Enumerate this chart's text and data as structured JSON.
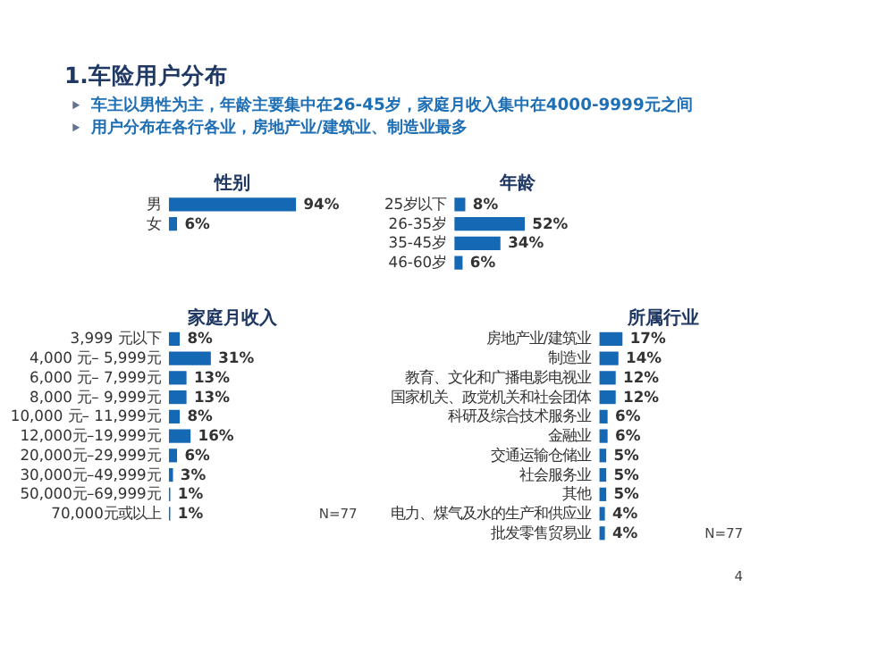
{
  "chart_data": [
    {
      "type": "other",
      "title": "1.车险用户分布",
      "annotations": [
        "车主以男性为主，年龄主要集中在26-45岁，家庭月收入集中在4000-9999元之间",
        "用户分布在各行各业，房地产业/建筑业、制造业最多"
      ]
    },
    {
      "type": "bar",
      "orientation": "horizontal",
      "title": "性别",
      "categories": [
        "男",
        "女"
      ],
      "values": [
        94,
        6
      ],
      "value_labels": [
        "94%",
        "6%"
      ],
      "color": "#1468b4"
    },
    {
      "type": "bar",
      "orientation": "horizontal",
      "title": "年龄",
      "categories": [
        "25岁以下",
        "26-35岁",
        "35-45岁",
        "46-60岁"
      ],
      "values": [
        8,
        52,
        34,
        6
      ],
      "value_labels": [
        "8%",
        "52%",
        "34%",
        "6%"
      ],
      "color": "#1468b4"
    },
    {
      "type": "bar",
      "orientation": "horizontal",
      "title": "家庭月收入",
      "categories": [
        "3,999 元以下",
        "4,000 元– 5,999元",
        "6,000 元– 7,999元",
        "8,000 元– 9,999元",
        "10,000 元– 11,999元",
        "12,000元–19,999元",
        "20,000元–29,999元",
        "30,000元–49,999元",
        "50,000元–69,999元",
        "70,000元或以上"
      ],
      "values": [
        8,
        31,
        13,
        13,
        8,
        16,
        6,
        3,
        1,
        1
      ],
      "value_labels": [
        "8%",
        "31%",
        "13%",
        "13%",
        "8%",
        "16%",
        "6%",
        "3%",
        "1%",
        "1%"
      ],
      "color": "#1468b4",
      "annotations": [
        "N=77"
      ]
    },
    {
      "type": "bar",
      "orientation": "horizontal",
      "title": "所属行业",
      "categories": [
        "房地产业/建筑业",
        "制造业",
        "教育、文化和广播电影电视业",
        "国家机关、政党机关和社会团体",
        "科研及综合技术服务业",
        "金融业",
        "交通运输仓储业",
        "社会服务业",
        "其他",
        "电力、煤气及水的生产和供应业",
        "批发零售贸易业"
      ],
      "values": [
        17,
        14,
        12,
        12,
        6,
        6,
        5,
        5,
        5,
        4,
        4
      ],
      "value_labels": [
        "17%",
        "14%",
        "12%",
        "12%",
        "6%",
        "6%",
        "5%",
        "5%",
        "5%",
        "4%",
        "4%"
      ],
      "color": "#1468b4",
      "annotations": [
        "N=77",
        "4"
      ]
    }
  ]
}
